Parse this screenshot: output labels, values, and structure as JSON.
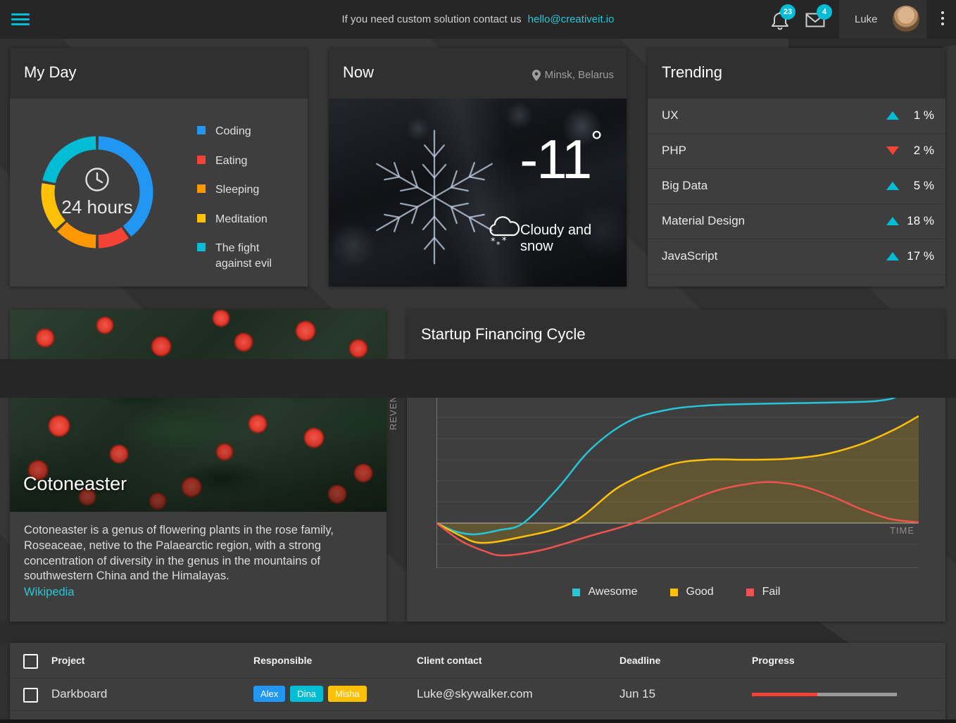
{
  "topbar": {
    "contact_text": "If you need custom solution contact us",
    "contact_email": "hello@creativeit.io",
    "notifications_count": "23",
    "messages_count": "4",
    "user_name": "Luke"
  },
  "my_day": {
    "title": "My Day",
    "center_label": "24 hours",
    "chart_data": {
      "type": "pie",
      "donut": true,
      "categories": [
        "Coding",
        "Eating",
        "Sleeping",
        "Meditation",
        "The fight against evil"
      ],
      "values": [
        40,
        10,
        13,
        15,
        22
      ],
      "unit": "% of 24 hours",
      "colors": [
        "#2196F3",
        "#F44336",
        "#FF9800",
        "#FFC107",
        "#00BCD4"
      ],
      "title": "My Day",
      "legend_position": "right"
    },
    "legend": [
      {
        "label": "Coding",
        "color": "#2196F3"
      },
      {
        "label": "Eating",
        "color": "#F44336"
      },
      {
        "label": "Sleeping",
        "color": "#FF9800"
      },
      {
        "label": "Meditation",
        "color": "#FFC107"
      },
      {
        "label": "The fight against evil",
        "color": "#00BCD4"
      }
    ]
  },
  "now": {
    "title": "Now",
    "location": "Minsk, Belarus",
    "temperature": "-11",
    "degree_symbol": "°",
    "condition": "Cloudy and snow"
  },
  "trending": {
    "title": "Trending",
    "up_color": "#00BCD4",
    "down_color": "#F44336",
    "items": [
      {
        "label": "UX",
        "direction": "up",
        "value": "1 %",
        "color": "#00BCD4"
      },
      {
        "label": "PHP",
        "direction": "down",
        "value": "2 %",
        "color": "#F44336"
      },
      {
        "label": "Big Data",
        "direction": "up",
        "value": "5 %",
        "color": "#00BCD4"
      },
      {
        "label": "Material Design",
        "direction": "up",
        "value": "18 %",
        "color": "#00BCD4"
      },
      {
        "label": "JavaScript",
        "direction": "up",
        "value": "17 %",
        "color": "#00BCD4"
      }
    ]
  },
  "cotoneaster": {
    "title": "Cotoneaster",
    "description": "Cotoneaster is a genus of flowering plants in the rose family, Roseaceae, netive to the Palaearctic region, with a strong concentration of diversity in the genus in the mountains of southwestern China and the Himalayas.",
    "link_label": "Wikipedia"
  },
  "financing": {
    "title": "Startup Financing Cycle",
    "chart_data": {
      "type": "line",
      "title": "Startup Financing Cycle",
      "xlabel": "TIME",
      "ylabel": "REVENUE",
      "baseline": 0,
      "ylim": [
        -60,
        180
      ],
      "grid": true,
      "legend_position": "bottom",
      "x_unit": "percent_of_timeline",
      "series": [
        {
          "name": "Awesome",
          "color": "#26C6DA",
          "fill": false,
          "points": [
            [
              0,
              0
            ],
            [
              4,
              -12
            ],
            [
              8,
              -16
            ],
            [
              13,
              -10
            ],
            [
              18,
              0
            ],
            [
              25,
              48
            ],
            [
              32,
              105
            ],
            [
              40,
              145
            ],
            [
              48,
              161
            ],
            [
              56,
              167
            ],
            [
              64,
              169
            ],
            [
              72,
              170
            ],
            [
              80,
              171
            ],
            [
              87,
              172
            ],
            [
              92,
              174
            ],
            [
              96,
              182
            ],
            [
              100,
              212
            ]
          ]
        },
        {
          "name": "Good",
          "color": "#FFC107",
          "fill": true,
          "fill_color": "rgba(255,193,7,0.18)",
          "points": [
            [
              0,
              0
            ],
            [
              5,
              -18
            ],
            [
              9,
              -28
            ],
            [
              16,
              -22
            ],
            [
              28,
              0
            ],
            [
              38,
              52
            ],
            [
              48,
              82
            ],
            [
              56,
              90
            ],
            [
              64,
              90
            ],
            [
              72,
              91
            ],
            [
              80,
              97
            ],
            [
              88,
              112
            ],
            [
              95,
              133
            ],
            [
              100,
              152
            ]
          ]
        },
        {
          "name": "Fail",
          "color": "#EF5350",
          "fill": false,
          "points": [
            [
              0,
              0
            ],
            [
              5,
              -25
            ],
            [
              10,
              -40
            ],
            [
              14,
              -46
            ],
            [
              22,
              -38
            ],
            [
              32,
              -18
            ],
            [
              41,
              0
            ],
            [
              50,
              25
            ],
            [
              58,
              46
            ],
            [
              65,
              56
            ],
            [
              70,
              58
            ],
            [
              76,
              52
            ],
            [
              82,
              38
            ],
            [
              88,
              20
            ],
            [
              94,
              6
            ],
            [
              100,
              1
            ]
          ]
        }
      ]
    }
  },
  "table": {
    "columns": [
      "Project",
      "Responsible",
      "Client contact",
      "Deadline",
      "Progress"
    ],
    "rows": [
      {
        "project": "Darkboard",
        "responsible": [
          {
            "name": "Alex",
            "color": "#2196F3"
          },
          {
            "name": "Dina",
            "color": "#00BCD4"
          },
          {
            "name": "Misha",
            "color": "#FFC107"
          }
        ],
        "client_contact": "Luke@skywalker.com",
        "deadline": "Jun 15",
        "progress_percent": 45,
        "progress_color": "#F44336"
      }
    ]
  }
}
